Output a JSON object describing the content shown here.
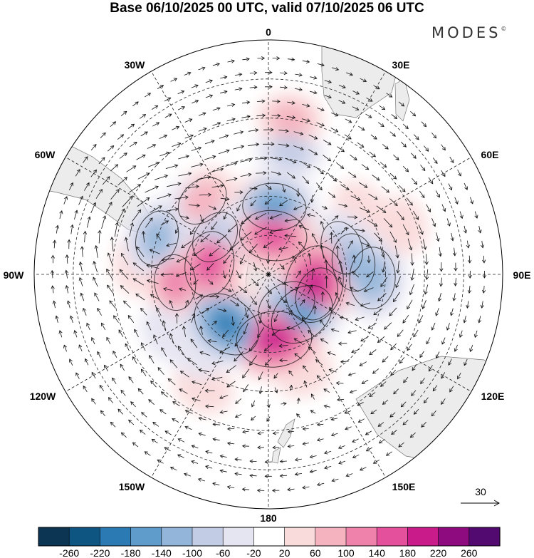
{
  "title": "Base 06/10/2025 00 UTC, valid 07/10/2025 06 UTC",
  "brand": {
    "name": "MODES",
    "mark": "©"
  },
  "longitude_labels": {
    "lon_0": "0",
    "lon_30e": "30E",
    "lon_60e": "60E",
    "lon_90e": "90E",
    "lon_120e": "120E",
    "lon_150e": "150E",
    "lon_180": "180",
    "lon_150w": "150W",
    "lon_120w": "120W",
    "lon_90w": "90W",
    "lon_60w": "60W",
    "lon_30w": "30W"
  },
  "vector_reference": {
    "label": "30"
  },
  "colorbar": {
    "colors": [
      "#0b3553",
      "#0e5582",
      "#2b7ab4",
      "#5f9ccc",
      "#93b5da",
      "#c3cce5",
      "#e5e4f1",
      "#ffffff",
      "#fadbdc",
      "#f5b3bf",
      "#ee82ab",
      "#e4509c",
      "#c91c8a",
      "#8e0b7f",
      "#530a70"
    ],
    "labels": [
      "-260",
      "-220",
      "-180",
      "-140",
      "-100",
      "-60",
      "-20",
      "20",
      "60",
      "100",
      "140",
      "180",
      "220",
      "260"
    ]
  },
  "anomaly_centers": [
    {
      "lon": 5,
      "colat": 26,
      "value": -140
    },
    {
      "lon": -42,
      "colat": 38,
      "value": 90
    },
    {
      "lon": 10,
      "colat": 48,
      "value": -60
    },
    {
      "lon": 8,
      "colat": 60,
      "value": 60
    },
    {
      "lon": -10,
      "colat": 28,
      "value": 40
    },
    {
      "lon": 7,
      "colat": 15,
      "value": 160
    },
    {
      "lon": -10,
      "colat": 12,
      "value": 40
    },
    {
      "lon": 35,
      "colat": 20,
      "value": 30
    },
    {
      "lon": 55,
      "colat": 43,
      "value": 40
    },
    {
      "lon": 70,
      "colat": 30,
      "value": -90
    },
    {
      "lon": 82,
      "colat": 33,
      "value": -110
    },
    {
      "lon": 92,
      "colat": 40,
      "value": -130
    },
    {
      "lon": 102,
      "colat": 18,
      "value": 210
    },
    {
      "lon": 112,
      "colat": 20,
      "value": 90
    },
    {
      "lon": 140,
      "colat": 20,
      "value": -160
    },
    {
      "lon": 150,
      "colat": 14,
      "value": -120
    },
    {
      "lon": 175,
      "colat": 25,
      "value": 200
    },
    {
      "lon": 160,
      "colat": 40,
      "value": 30
    },
    {
      "lon": -150,
      "colat": 50,
      "value": 40
    },
    {
      "lon": -140,
      "colat": 25,
      "value": -180
    },
    {
      "lon": -135,
      "colat": 40,
      "value": -50
    },
    {
      "lon": -160,
      "colat": 15,
      "value": 40
    },
    {
      "lon": -80,
      "colat": 23,
      "value": 150
    },
    {
      "lon": -95,
      "colat": 36,
      "value": 100
    },
    {
      "lon": -85,
      "colat": 50,
      "value": 50
    },
    {
      "lon": -72,
      "colat": 45,
      "value": -100
    },
    {
      "lon": -55,
      "colat": 25,
      "value": -90
    },
    {
      "lon": -50,
      "colat": 40,
      "value": -40
    },
    {
      "lon": -30,
      "colat": 18,
      "value": -40
    },
    {
      "lon": -110,
      "colat": 20,
      "value": 60
    },
    {
      "lon": -120,
      "colat": 45,
      "value": -30
    },
    {
      "lon": 70,
      "colat": 55,
      "value": 30
    }
  ],
  "cyclones": [
    {
      "lon": 5,
      "colat": 26,
      "dir": 1
    },
    {
      "lon": 7,
      "colat": 15,
      "dir": -1
    },
    {
      "lon": -80,
      "colat": 23,
      "dir": -1
    },
    {
      "lon": -55,
      "colat": 25,
      "dir": 1
    },
    {
      "lon": 82,
      "colat": 33,
      "dir": 1
    },
    {
      "lon": 102,
      "colat": 18,
      "dir": -1
    },
    {
      "lon": 140,
      "colat": 20,
      "dir": 1
    },
    {
      "lon": 175,
      "colat": 25,
      "dir": -1
    },
    {
      "lon": -140,
      "colat": 25,
      "dir": 1
    },
    {
      "lon": -72,
      "colat": 45,
      "dir": 1
    }
  ]
}
